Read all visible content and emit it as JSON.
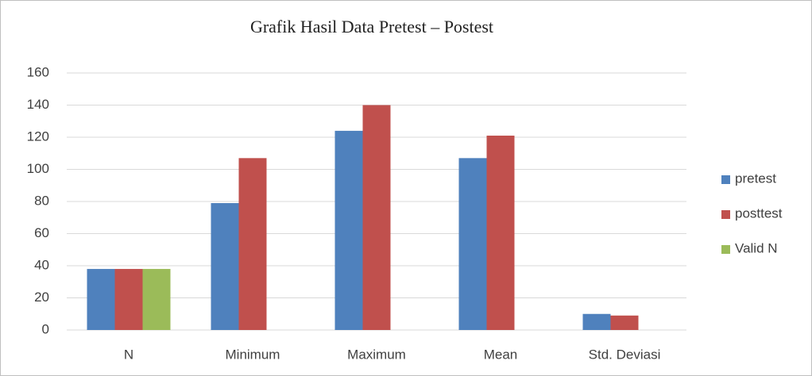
{
  "chart_data": {
    "type": "bar",
    "title": "Grafik Hasil Data Pretest – Postest",
    "categories": [
      "N",
      "Minimum",
      "Maximum",
      "Mean",
      "Std. Deviasi"
    ],
    "series": [
      {
        "name": "pretest",
        "color": "#4f81bd",
        "values": [
          38,
          79,
          124,
          107,
          10
        ]
      },
      {
        "name": "posttest",
        "color": "#c0504d",
        "values": [
          38,
          107,
          140,
          121,
          9
        ]
      },
      {
        "name": "Valid N",
        "color": "#9bbb59",
        "values": [
          38,
          null,
          null,
          null,
          null
        ]
      }
    ],
    "ylim": [
      0,
      160
    ],
    "yticks": [
      0,
      20,
      40,
      60,
      80,
      100,
      120,
      140,
      160
    ],
    "grid": true,
    "legend": "right"
  }
}
